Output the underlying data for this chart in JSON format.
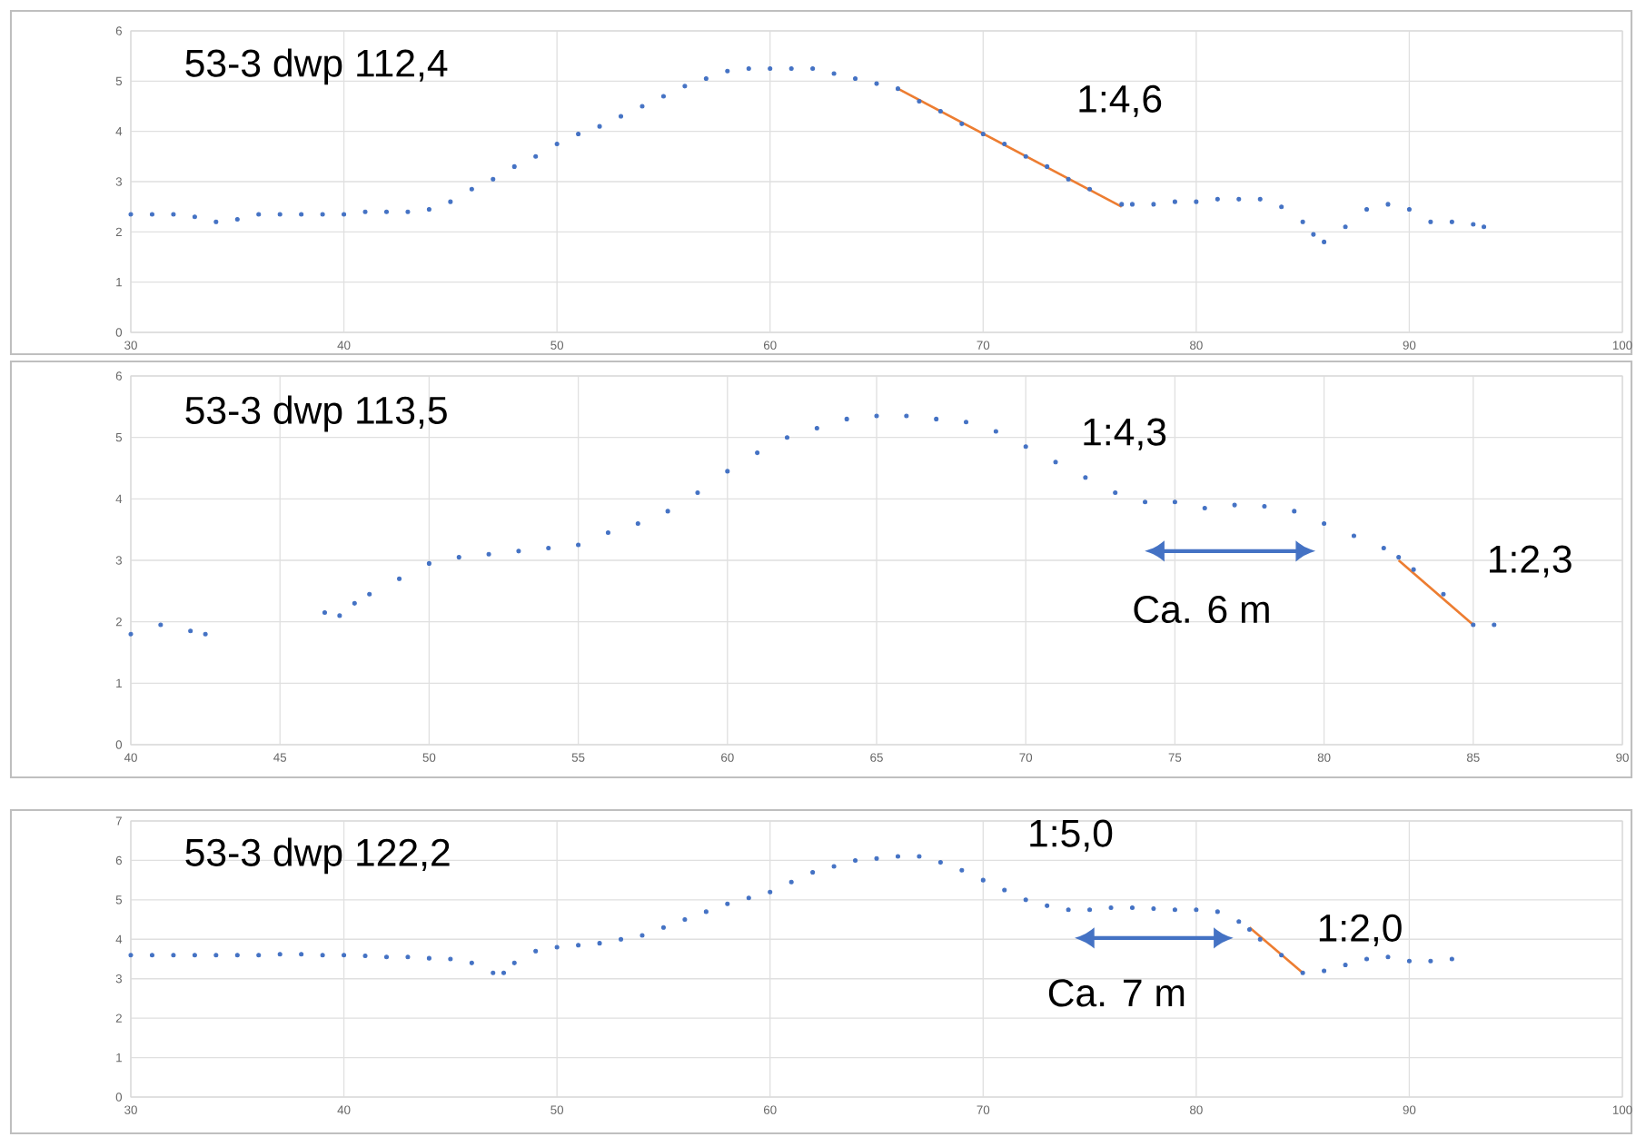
{
  "chart_data": [
    {
      "type": "scatter",
      "title": "53-3 dwp 112,4",
      "xlim": [
        30,
        100
      ],
      "ylim": [
        0,
        6
      ],
      "xticks": [
        30,
        40,
        50,
        60,
        70,
        80,
        90,
        100
      ],
      "yticks": [
        0,
        1,
        2,
        3,
        4,
        5,
        6
      ],
      "grid": true,
      "annotations": [
        "1:4,6"
      ],
      "series": [
        {
          "color": "#4472c4",
          "x": [
            30,
            31,
            32,
            33,
            34,
            35,
            36,
            37,
            38,
            39,
            40,
            41,
            42,
            43,
            44,
            45,
            46,
            47,
            48,
            49,
            50,
            51,
            52,
            53,
            54,
            55,
            56,
            57,
            58,
            59,
            60,
            61,
            62,
            63,
            64,
            65,
            66,
            67,
            68,
            69,
            70,
            71,
            72,
            73,
            74,
            75,
            76.5,
            77,
            78,
            79,
            80,
            81,
            82,
            83,
            84,
            85,
            85.5,
            86,
            87,
            88,
            89,
            90,
            91,
            92,
            93,
            93.5
          ],
          "values": [
            2.35,
            2.35,
            2.35,
            2.3,
            2.2,
            2.25,
            2.35,
            2.35,
            2.35,
            2.35,
            2.35,
            2.4,
            2.4,
            2.4,
            2.45,
            2.6,
            2.85,
            3.05,
            3.3,
            3.5,
            3.75,
            3.95,
            4.1,
            4.3,
            4.5,
            4.7,
            4.9,
            5.05,
            5.2,
            5.25,
            5.25,
            5.25,
            5.25,
            5.15,
            5.05,
            4.95,
            4.85,
            4.6,
            4.4,
            4.15,
            3.95,
            3.75,
            3.5,
            3.3,
            3.05,
            2.85,
            2.55,
            2.55,
            2.55,
            2.6,
            2.6,
            2.65,
            2.65,
            2.65,
            2.5,
            2.2,
            1.95,
            1.8,
            2.1,
            2.45,
            2.55,
            2.45,
            2.2,
            2.2,
            2.15,
            2.1
          ]
        },
        {
          "type": "line",
          "color": "#ed7d31",
          "x": [
            66,
            76.5
          ],
          "values": [
            4.85,
            2.5
          ]
        }
      ]
    },
    {
      "type": "scatter",
      "title": "53-3 dwp 113,5",
      "xlim": [
        40,
        90
      ],
      "ylim": [
        0,
        6
      ],
      "xticks": [
        40,
        45,
        50,
        55,
        60,
        65,
        70,
        75,
        80,
        85,
        90
      ],
      "yticks": [
        0,
        1,
        2,
        3,
        4,
        5,
        6
      ],
      "grid": true,
      "annotations": [
        "1:4,3",
        "1:2,3",
        "Ca. 6 m"
      ],
      "series": [
        {
          "color": "#4472c4",
          "x": [
            40,
            41,
            42,
            42.5,
            44,
            46.5,
            47,
            47.5,
            48,
            49,
            50,
            51,
            52,
            53,
            54,
            55,
            56,
            57,
            58,
            59,
            60,
            61,
            62,
            63,
            64,
            65,
            66,
            67,
            68,
            69,
            70,
            71,
            72,
            73,
            74,
            75,
            76,
            77,
            78,
            79,
            80,
            81,
            82,
            82.5,
            83,
            84,
            85,
            85.7
          ],
          "values": [
            1.8,
            1.95,
            1.85,
            1.8,
            null,
            2.15,
            2.1,
            2.3,
            2.45,
            2.7,
            2.95,
            3.05,
            3.1,
            3.15,
            3.2,
            3.25,
            3.45,
            3.6,
            3.8,
            4.1,
            4.45,
            4.75,
            5.0,
            5.15,
            5.3,
            5.35,
            5.35,
            5.3,
            5.25,
            5.1,
            4.85,
            4.6,
            4.35,
            4.1,
            3.95,
            3.95,
            3.85,
            3.9,
            3.88,
            3.8,
            3.6,
            3.4,
            3.2,
            3.05,
            2.85,
            2.45,
            1.95,
            1.95
          ]
        },
        {
          "type": "line",
          "color": "#ed7d31",
          "x": [
            82.5,
            85
          ],
          "values": [
            3.0,
            1.95
          ]
        }
      ]
    },
    {
      "type": "scatter",
      "title": "53-3 dwp 122,2",
      "xlim": [
        30,
        100
      ],
      "ylim": [
        0,
        7
      ],
      "xticks": [
        30,
        40,
        50,
        60,
        70,
        80,
        90,
        100
      ],
      "yticks": [
        0,
        1,
        2,
        3,
        4,
        5,
        6,
        7
      ],
      "grid": true,
      "annotations": [
        "1:5,0",
        "1:2,0",
        "Ca. 7 m"
      ],
      "series": [
        {
          "color": "#4472c4",
          "x": [
            30,
            31,
            32,
            33,
            34,
            35,
            36,
            37,
            38,
            39,
            40,
            41,
            42,
            43,
            44,
            45,
            46,
            47,
            47.5,
            48,
            49,
            50,
            51,
            52,
            53,
            54,
            55,
            56,
            57,
            58,
            59,
            60,
            61,
            62,
            63,
            64,
            65,
            66,
            67,
            68,
            69,
            70,
            71,
            72,
            73,
            74,
            75,
            76,
            77,
            78,
            79,
            80,
            81,
            82,
            82.5,
            83,
            84,
            85,
            86,
            87,
            88,
            89,
            90,
            91,
            92
          ],
          "values": [
            3.6,
            3.6,
            3.6,
            3.6,
            3.6,
            3.6,
            3.6,
            3.62,
            3.62,
            3.6,
            3.6,
            3.58,
            3.55,
            3.55,
            3.52,
            3.5,
            3.4,
            3.15,
            3.15,
            3.4,
            3.7,
            3.8,
            3.85,
            3.9,
            4.0,
            4.1,
            4.3,
            4.5,
            4.7,
            4.9,
            5.05,
            5.2,
            5.45,
            5.7,
            5.85,
            6.0,
            6.05,
            6.1,
            6.1,
            5.95,
            5.75,
            5.5,
            5.25,
            5.0,
            4.85,
            4.75,
            4.75,
            4.8,
            4.8,
            4.78,
            4.75,
            4.75,
            4.7,
            4.45,
            4.25,
            4.0,
            3.6,
            3.15,
            3.2,
            3.35,
            3.5,
            3.55,
            3.45,
            3.45,
            3.5
          ]
        },
        {
          "type": "line",
          "color": "#ed7d31",
          "x": [
            82.5,
            85
          ],
          "values": [
            4.3,
            3.15
          ]
        }
      ]
    }
  ]
}
